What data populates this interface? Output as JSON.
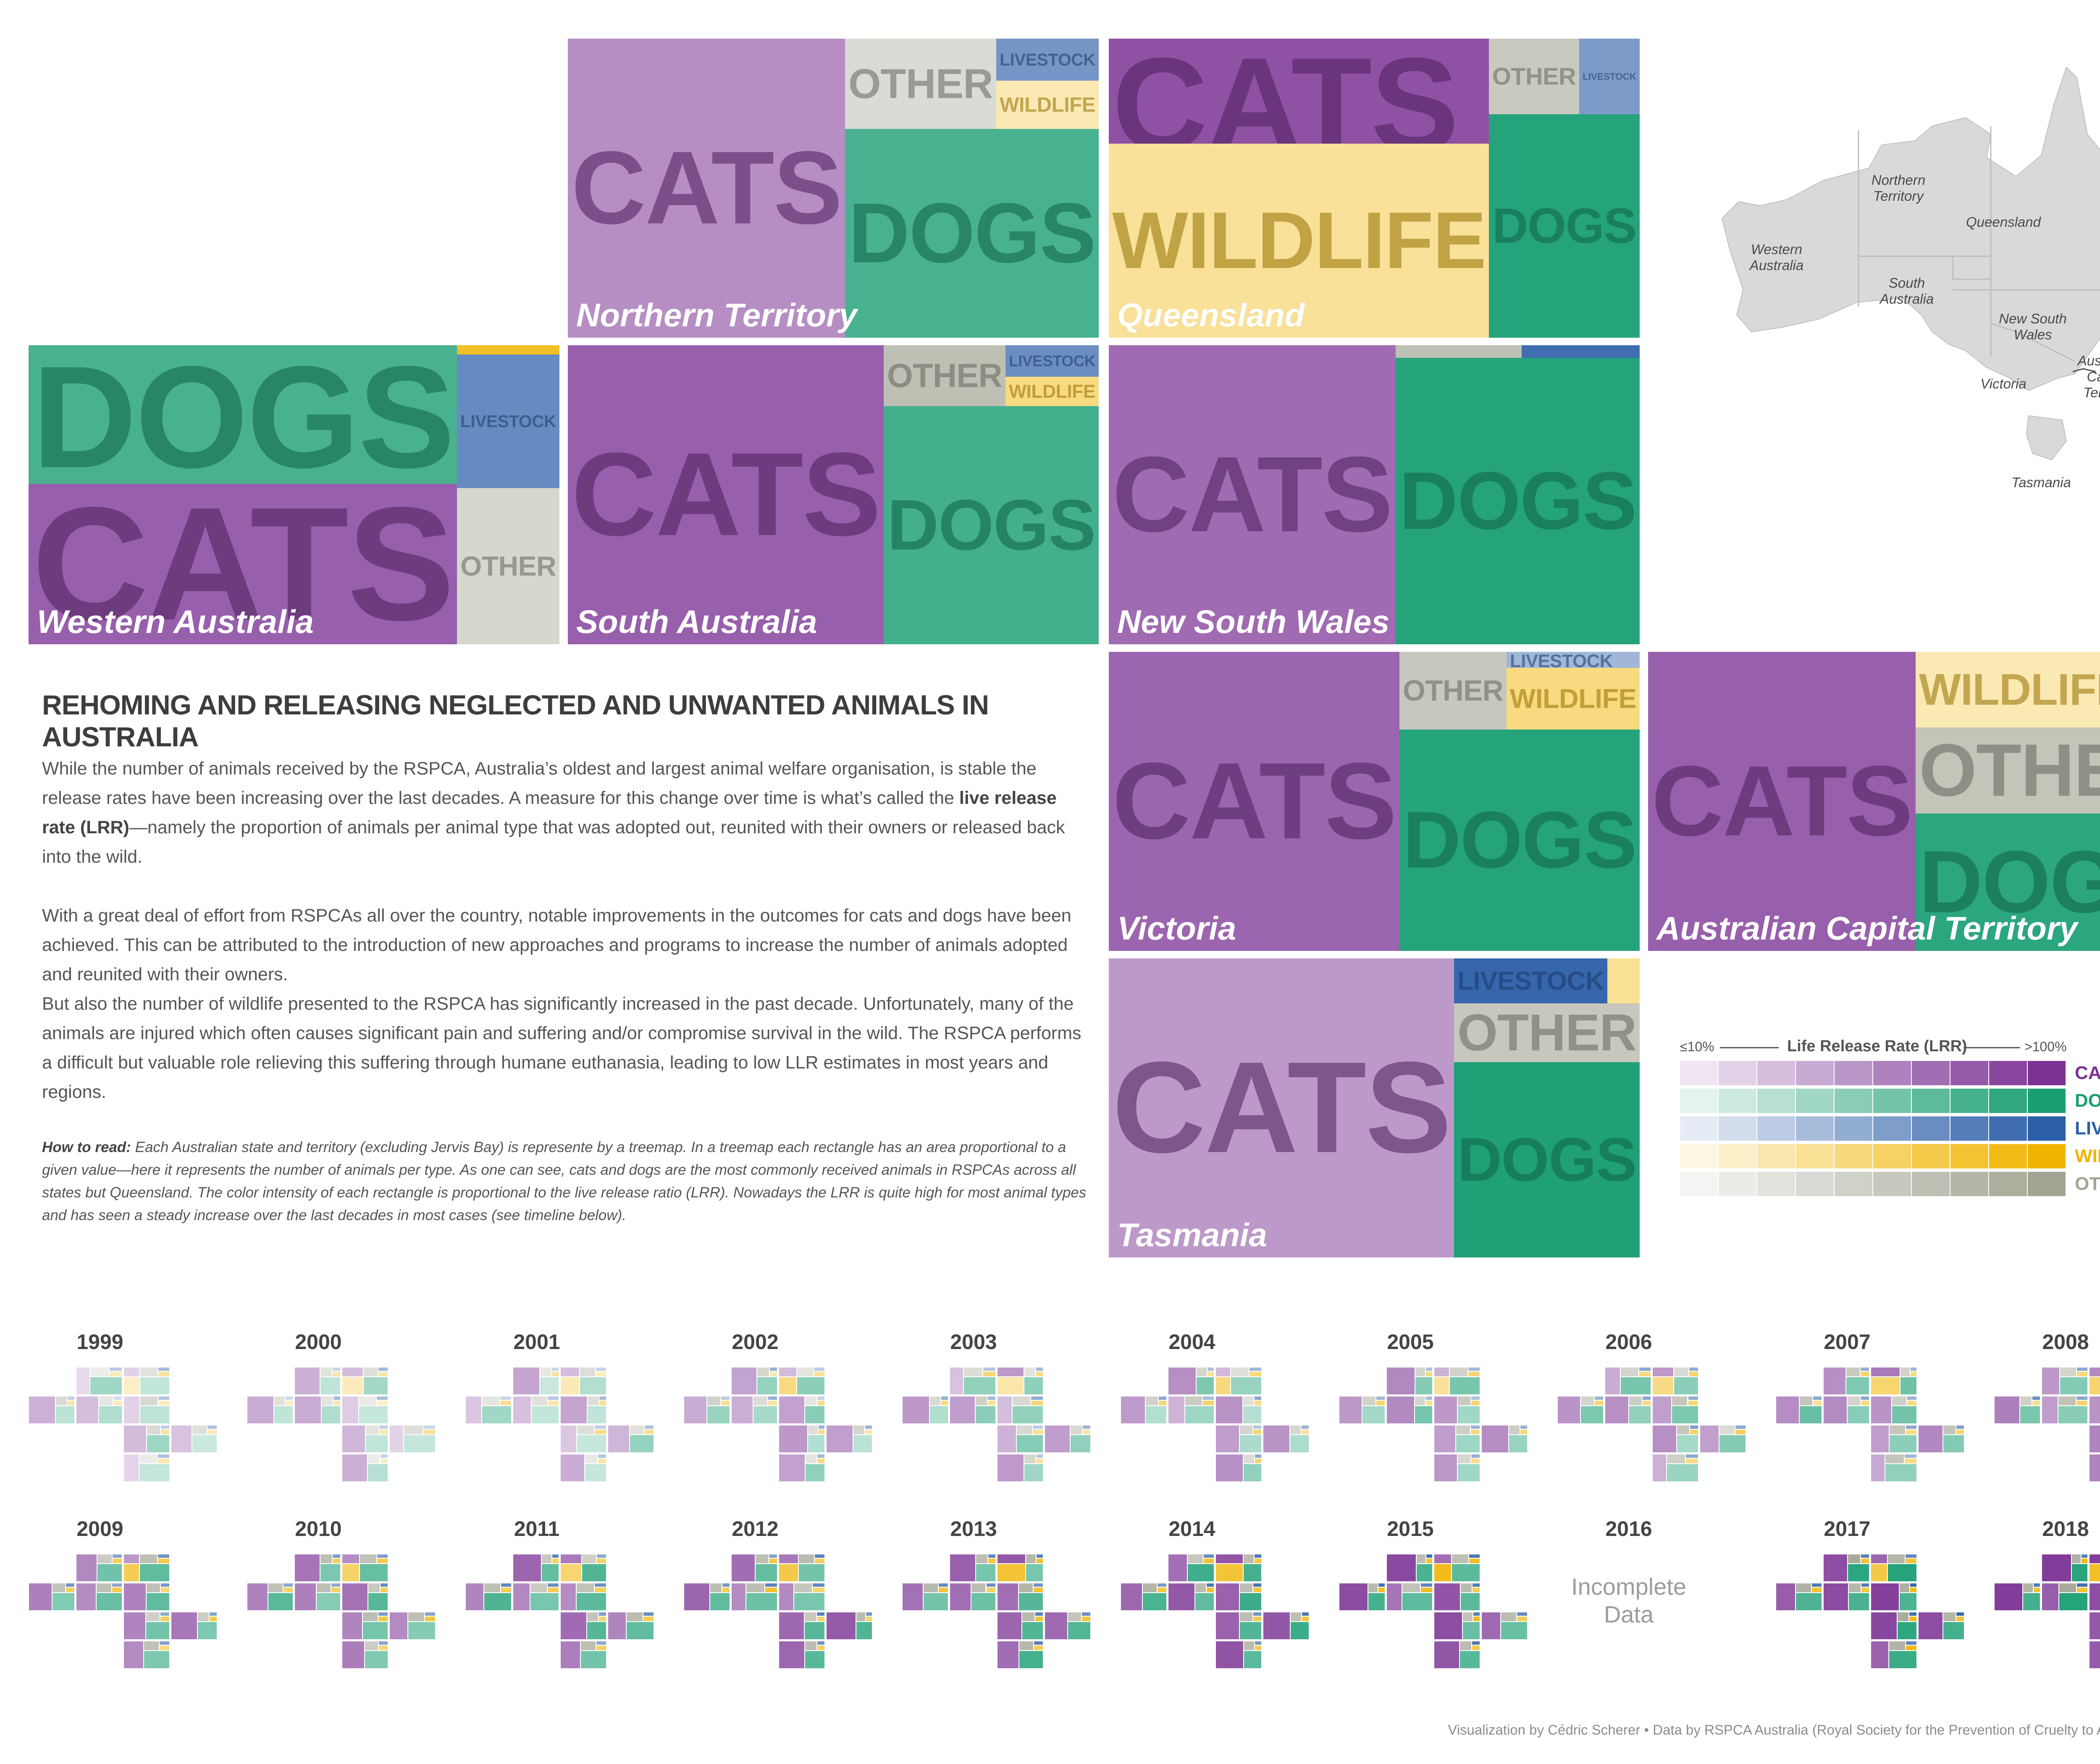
{
  "colors": {
    "CATS": "#7b3294",
    "DOGS": "#1a9e74",
    "LIVESTOCK": "#2b5ea8",
    "WILDLIFE": "#f0b400",
    "OTHER": "#a3a594"
  },
  "chart_data": {
    "type": "treemap",
    "title": "REHOMING AND RELEASING NEGLECTED AND UNWANTED ANIMALS IN AUSTRALIA",
    "value_encoding": "area = number of animals received per type; color intensity = live release rate (LRR)",
    "animal_types": [
      "CATS",
      "DOGS",
      "LIVESTOCK",
      "WILDLIFE",
      "OTHER"
    ],
    "regions": [
      {
        "name": "Northern Territory",
        "labels": [
          "CATS",
          "OTHER",
          "LIVESTOCK",
          "WILDLIFE",
          "DOGS"
        ]
      },
      {
        "name": "Queensland",
        "labels": [
          "CATS",
          "OTHER",
          "LIVESTOCK",
          "WILDLIFE",
          "DOGS"
        ]
      },
      {
        "name": "Western Australia",
        "labels": [
          "DOGS",
          "LIVESTOCK",
          "CATS",
          "OTHER"
        ]
      },
      {
        "name": "South Australia",
        "labels": [
          "CATS",
          "OTHER",
          "LIVESTOCK",
          "WILDLIFE",
          "DOGS"
        ]
      },
      {
        "name": "New South Wales",
        "labels": [
          "CATS",
          "DOGS"
        ]
      },
      {
        "name": "Victoria",
        "labels": [
          "CATS",
          "OTHER",
          "LIVESTOCK",
          "WILDLIFE",
          "DOGS"
        ]
      },
      {
        "name": "Australian Capital Territory",
        "labels": [
          "CATS",
          "WILDLIFE",
          "OTHER",
          "DOGS"
        ]
      },
      {
        "name": "Tasmania",
        "labels": [
          "CATS",
          "LIVESTOCK",
          "OTHER",
          "DOGS"
        ]
      }
    ],
    "timeline_years": [
      "1999",
      "2000",
      "2001",
      "2002",
      "2003",
      "2004",
      "2005",
      "2006",
      "2007",
      "2008",
      "2009",
      "2010",
      "2011",
      "2012",
      "2013",
      "2014",
      "2015",
      "2016",
      "2017",
      "2018"
    ],
    "legend": {
      "title": "Life Release Rate (LRR)",
      "min_label": "≤10%",
      "max_label": ">100%",
      "steps": 10,
      "categories": [
        "CATS",
        "DOGS",
        "LIVESTOCK",
        "WILDLIFE",
        "OTHER"
      ]
    }
  },
  "text": {
    "paragraph1": [
      "While the number of animals received by the RSPCA, Australia’s oldest and largest animal welfare organisation, is stable the release rates have been increasing over the last decades. A measure for this change over time is what’s called the ",
      "live release rate (LRR)",
      "—namely the proportion of animals per animal type that was adopted out, reunited with their owners or released back into the wild."
    ],
    "paragraph2": "With a great deal of effort from RSPCAs all over the country, notable improvements in the outcomes for cats and dogs have been achieved. This can be attributed to the introduction of new approaches and programs to increase the number of animals adopted and reunited with their owners.",
    "paragraph3": "But also the number of wildlife presented to the RSPCA has significantly increased in the past decade. Unfortunately, many of the animals are injured which often causes significant pain and suffering and/or compromise survival in the wild. The RSPCA performs a difficult but valuable role relieving this suffering through humane euthanasia, leading to low LLR estimates in most years and regions.",
    "howto_lead": "How to read:",
    "howto_body": " Each Australian state and territory (excluding Jervis Bay) is represente by a treemap. In a treemap each rectangle has an area proportional to a given value—here it represents the number of animals per type. As one can see, cats and dogs are the most commonly received animals in RSPCAs across all states but Queensland. The color intensity of each rectangle is proportional to the live release ratio (LRR). Nowadays the LRR is quite high for most animal types and has seen a steady increase over the last decades in most cases (see timeline below).",
    "incomplete_line1": "Incomplete",
    "incomplete_line2": "Data",
    "credit": "Visualization by Cédric Scherer  •  Data by RSPCA Australia (Royal Society for the Prevention of Cruelty to Animals)"
  },
  "map": {
    "labels": [
      {
        "id": "wa",
        "text": "Western Australia"
      },
      {
        "id": "nt",
        "text": "Northern Territory"
      },
      {
        "id": "qld",
        "text": "Queensland"
      },
      {
        "id": "sa",
        "text": "South Australia"
      },
      {
        "id": "nsw",
        "text": "New South Wales"
      },
      {
        "id": "act",
        "text": "Australian Capital Territory"
      },
      {
        "id": "vic",
        "text": "Victoria"
      },
      {
        "id": "tas",
        "text": "Tasmania"
      }
    ]
  }
}
